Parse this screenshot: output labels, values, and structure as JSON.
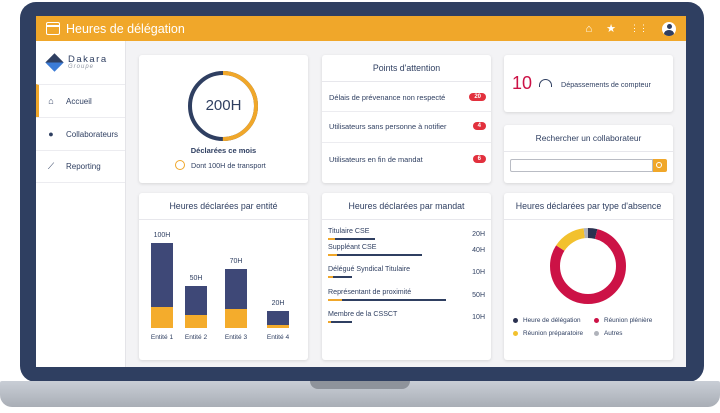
{
  "app": {
    "title": "Heures de délégation"
  },
  "logo": {
    "name": "Dakara",
    "sub": "Groupe"
  },
  "sidebar": {
    "items": [
      {
        "label": "Accueil",
        "icon": "home-icon"
      },
      {
        "label": "Collaborateurs",
        "icon": "users-icon"
      },
      {
        "label": "Reporting",
        "icon": "chart-line-icon"
      }
    ]
  },
  "summary": {
    "total": "200H",
    "caption": "Déclarées ce mois",
    "transport": "Dont 100H de transport",
    "ring_fraction": 0.5
  },
  "attention": {
    "title": "Points d'attention",
    "rows": [
      {
        "label": "Délais de prévenance non respecté",
        "count": "20"
      },
      {
        "label": "Utilisateurs sans personne à notifier",
        "count": "4"
      },
      {
        "label": "Utilisateurs en fin de mandat",
        "count": "6"
      }
    ]
  },
  "counter": {
    "value": "10",
    "label": "Dépassements de compteur"
  },
  "search": {
    "title": "Rechercher un collaborateur",
    "placeholder": ""
  },
  "entity_chart": {
    "title": "Heures déclarées par entité",
    "chart_data": {
      "type": "bar",
      "categories": [
        "Entité 1",
        "Entité 2",
        "Entité 3",
        "Entité 4"
      ],
      "labels": [
        "100H",
        "50H",
        "70H",
        "20H"
      ],
      "series": [
        {
          "values": [
            75,
            35,
            48,
            17
          ]
        },
        {
          "values": [
            25,
            15,
            22,
            3
          ]
        }
      ],
      "ylim": [
        0,
        100
      ]
    }
  },
  "mandat_chart": {
    "title": "Heures déclarées par mandat",
    "chart_data": {
      "type": "bar",
      "categories": [
        "Titulaire CSE",
        "Suppléant CSE",
        "Délégué Syndical Titulaire",
        "Représentant de proximité",
        "Membre de la CSSCT"
      ],
      "labels": [
        "20H",
        "40H",
        "10H",
        "50H",
        "10H"
      ],
      "values": [
        20,
        40,
        10,
        50,
        10
      ],
      "highlight": [
        0.15,
        0.1,
        0.2,
        0.12,
        0.12
      ]
    }
  },
  "absence_chart": {
    "title": "Heures déclarées par type d'absence",
    "chart_data": {
      "type": "pie",
      "categories": [
        "Heure de délégation",
        "Réunion plénière",
        "Réunion préparatoire",
        "Autres"
      ],
      "values": [
        4,
        80,
        14,
        2
      ],
      "colors": [
        "#2a3150",
        "#cc1246",
        "#f2c12e",
        "#b0b3bb"
      ]
    }
  },
  "colors": {
    "accent": "#f0a72a",
    "navy": "#2f3f61",
    "alert": "#e2303d"
  }
}
